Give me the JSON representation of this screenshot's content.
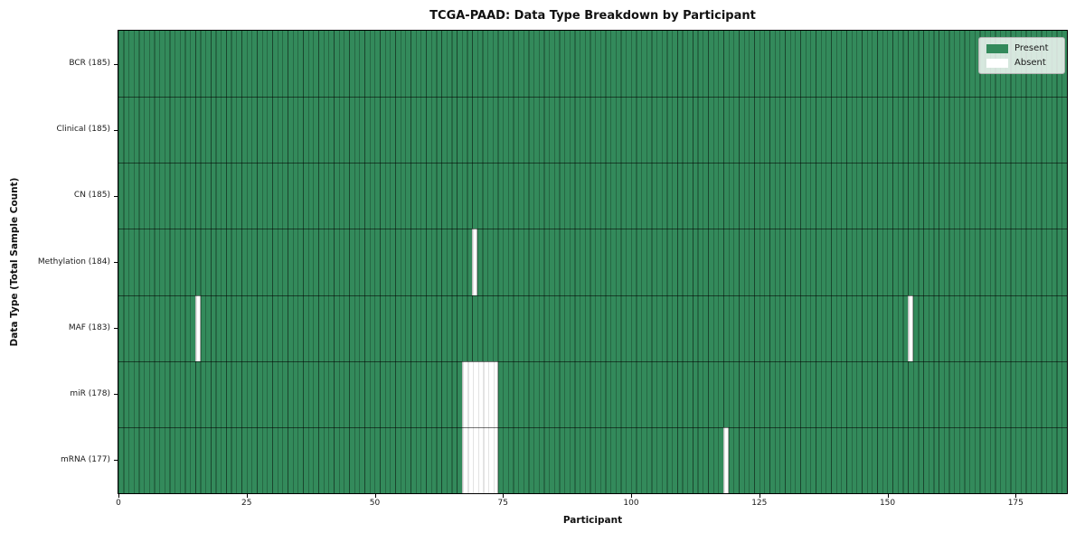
{
  "title": "TCGA-PAAD: Data Type Breakdown by Participant",
  "chart_data": {
    "type": "heatmap",
    "title": "TCGA-PAAD: Data Type Breakdown by Participant",
    "xlabel": "Participant",
    "ylabel": "Data Type (Total Sample Count)",
    "n_participants": 185,
    "xlim": [
      0,
      185
    ],
    "x_ticks": [
      0,
      25,
      50,
      75,
      100,
      125,
      150,
      175
    ],
    "grid": false,
    "legend_position": "upper right",
    "colors": {
      "present": "#338a5b",
      "absent": "#ffffff"
    },
    "legend": {
      "entries": [
        {
          "label": "Present",
          "color": "#338a5b"
        },
        {
          "label": "Absent",
          "color": "#ffffff"
        }
      ]
    },
    "rows": [
      {
        "label": "BCR (185)",
        "data_type": "BCR",
        "total_samples": 185,
        "absent_participants": []
      },
      {
        "label": "Clinical (185)",
        "data_type": "Clinical",
        "total_samples": 185,
        "absent_participants": []
      },
      {
        "label": "CN (185)",
        "data_type": "CN",
        "total_samples": 185,
        "absent_participants": []
      },
      {
        "label": "Methylation (184)",
        "data_type": "Methylation",
        "total_samples": 184,
        "absent_participants": [
          69
        ]
      },
      {
        "label": "MAF (183)",
        "data_type": "MAF",
        "total_samples": 183,
        "absent_participants": [
          15,
          154
        ]
      },
      {
        "label": "miR (178)",
        "data_type": "miR",
        "total_samples": 178,
        "absent_participants": [
          67,
          68,
          69,
          70,
          71,
          72,
          73
        ]
      },
      {
        "label": "mRNA (177)",
        "data_type": "mRNA",
        "total_samples": 177,
        "absent_participants": [
          67,
          68,
          69,
          70,
          71,
          72,
          73,
          118
        ]
      }
    ]
  }
}
